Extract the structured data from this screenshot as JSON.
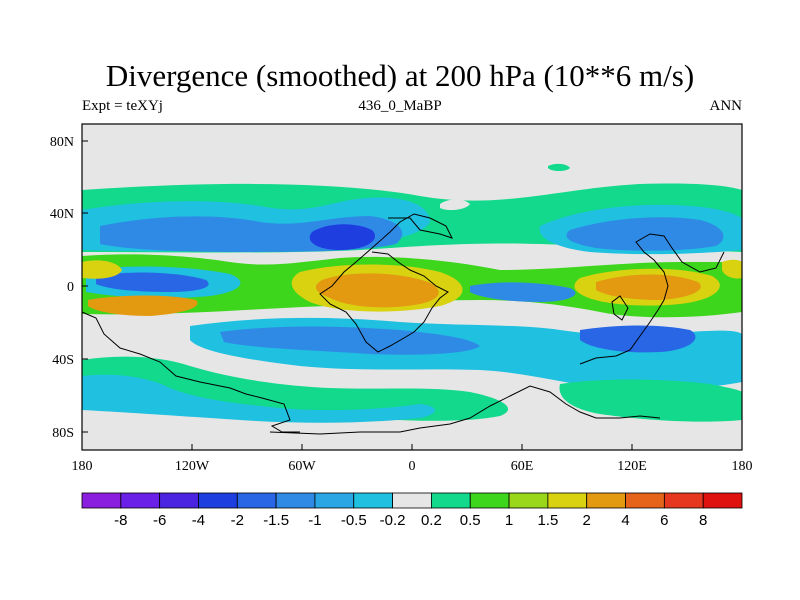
{
  "title": "Divergence (smoothed) at 200 hPa (10**6 m/s)",
  "subtitle_left": "Expt = teXYj",
  "subtitle_center": "436_0_MaBP",
  "subtitle_right": "ANN",
  "y_ticks": [
    "80N",
    "40N",
    "0",
    "40S",
    "80S"
  ],
  "x_ticks": [
    "180",
    "120W",
    "60W",
    "0",
    "60E",
    "120E",
    "180"
  ],
  "colorbar": {
    "labels": [
      "-8",
      "-6",
      "-4",
      "-2",
      "-1.5",
      "-1",
      "-0.5",
      "-0.2",
      "0.2",
      "0.5",
      "1",
      "1.5",
      "2",
      "4",
      "6",
      "8"
    ],
    "colors": [
      "#8a1fe0",
      "#6a20e6",
      "#4a24e0",
      "#1f3ee0",
      "#2866e6",
      "#2f8ae6",
      "#29a6e3",
      "#1fc0e0",
      "#e6e6e6",
      "#12d98c",
      "#3dd61c",
      "#9ad61a",
      "#d9d211",
      "#e39a10",
      "#e6641a",
      "#e6381f",
      "#e0120f"
    ]
  },
  "map_colors": {
    "neutral": "#e6e6e6",
    "pos_low": "#12d98c",
    "pos_mid": "#3dd61c",
    "pos_hi": "#9ad61a",
    "pos_yel": "#d9d211",
    "pos_org": "#e39a10",
    "neg_low": "#1fc0e0",
    "neg_mid": "#29a6e3",
    "neg_hi": "#2f8ae6",
    "neg_blue": "#2866e6",
    "neg_deep": "#1f3ee0"
  }
}
